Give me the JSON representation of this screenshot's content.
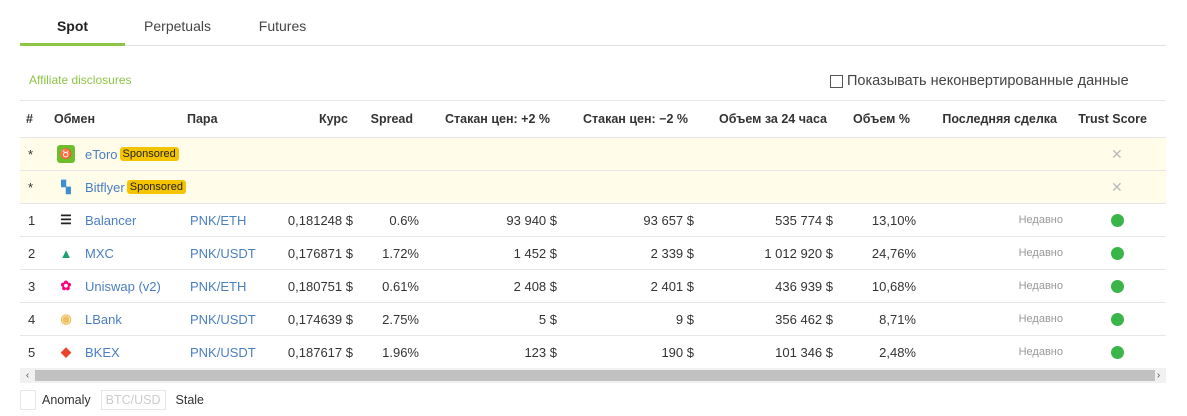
{
  "tabs": [
    "Spot",
    "Perpetuals",
    "Futures"
  ],
  "affiliate": "Affiliate disclosures",
  "unconverted_label": "Показывать неконвертированные данные",
  "headers": {
    "num": "#",
    "exchange": "Обмен",
    "pair": "Пара",
    "price": "Курс",
    "spread": "Spread",
    "depth_plus": "Стакан цен: +2 %",
    "depth_minus": "Стакан цен: −2 %",
    "volume": "Объем за 24 часа",
    "volume_pct": "Объем %",
    "last_trade": "Последняя сделка",
    "trust": "Trust Score"
  },
  "sponsored": [
    {
      "num": "*",
      "name": "eToro",
      "badge": "Sponsored",
      "icon": "etoro-logo",
      "color": "#6dbe2d",
      "close": "✕"
    },
    {
      "num": "*",
      "name": "Bitflyer",
      "badge": "Sponsored",
      "icon": "bitflyer-logo",
      "color": "#3e8ed0",
      "close": "✕"
    }
  ],
  "rows": [
    {
      "num": "1",
      "name": "Balancer",
      "icon": "balancer-logo",
      "color": "#222222",
      "pair": "PNK/ETH",
      "price": "0,181248 $",
      "spread": "0.6%",
      "plus": "93 940 $",
      "minus": "93 657 $",
      "volume": "535 774 $",
      "pct": "13,10%",
      "last": "Недавно",
      "trust_color": "#3ab54a"
    },
    {
      "num": "2",
      "name": "MXC",
      "icon": "mxc-logo",
      "color": "#1aa36f",
      "pair": "PNK/USDT",
      "price": "0,176871 $",
      "spread": "1.72%",
      "plus": "1 452 $",
      "minus": "2 339 $",
      "volume": "1 012 920 $",
      "pct": "24,76%",
      "last": "Недавно",
      "trust_color": "#3ab54a"
    },
    {
      "num": "3",
      "name": "Uniswap (v2)",
      "icon": "uniswap-logo",
      "color": "#ff007a",
      "pair": "PNK/ETH",
      "price": "0,180751 $",
      "spread": "0.61%",
      "plus": "2 408 $",
      "minus": "2 401 $",
      "volume": "436 939 $",
      "pct": "10,68%",
      "last": "Недавно",
      "trust_color": "#3ab54a"
    },
    {
      "num": "4",
      "name": "LBank",
      "icon": "lbank-logo",
      "color": "#f0c060",
      "pair": "PNK/USDT",
      "price": "0,174639 $",
      "spread": "2.75%",
      "plus": "5 $",
      "minus": "9 $",
      "volume": "356 462 $",
      "pct": "8,71%",
      "last": "Недавно",
      "trust_color": "#3ab54a"
    },
    {
      "num": "5",
      "name": "BKEX",
      "icon": "bkex-logo",
      "color": "#e8452c",
      "pair": "PNK/USDT",
      "price": "0,187617 $",
      "spread": "1.96%",
      "plus": "123 $",
      "minus": "190 $",
      "volume": "101 346 $",
      "pct": "2,48%",
      "last": "Недавно",
      "trust_color": "#3ab54a"
    }
  ],
  "legend": [
    "Anomaly",
    "BTC/USD",
    "Stale"
  ],
  "scroll_arrows": {
    "left": "‹",
    "right": "›"
  }
}
